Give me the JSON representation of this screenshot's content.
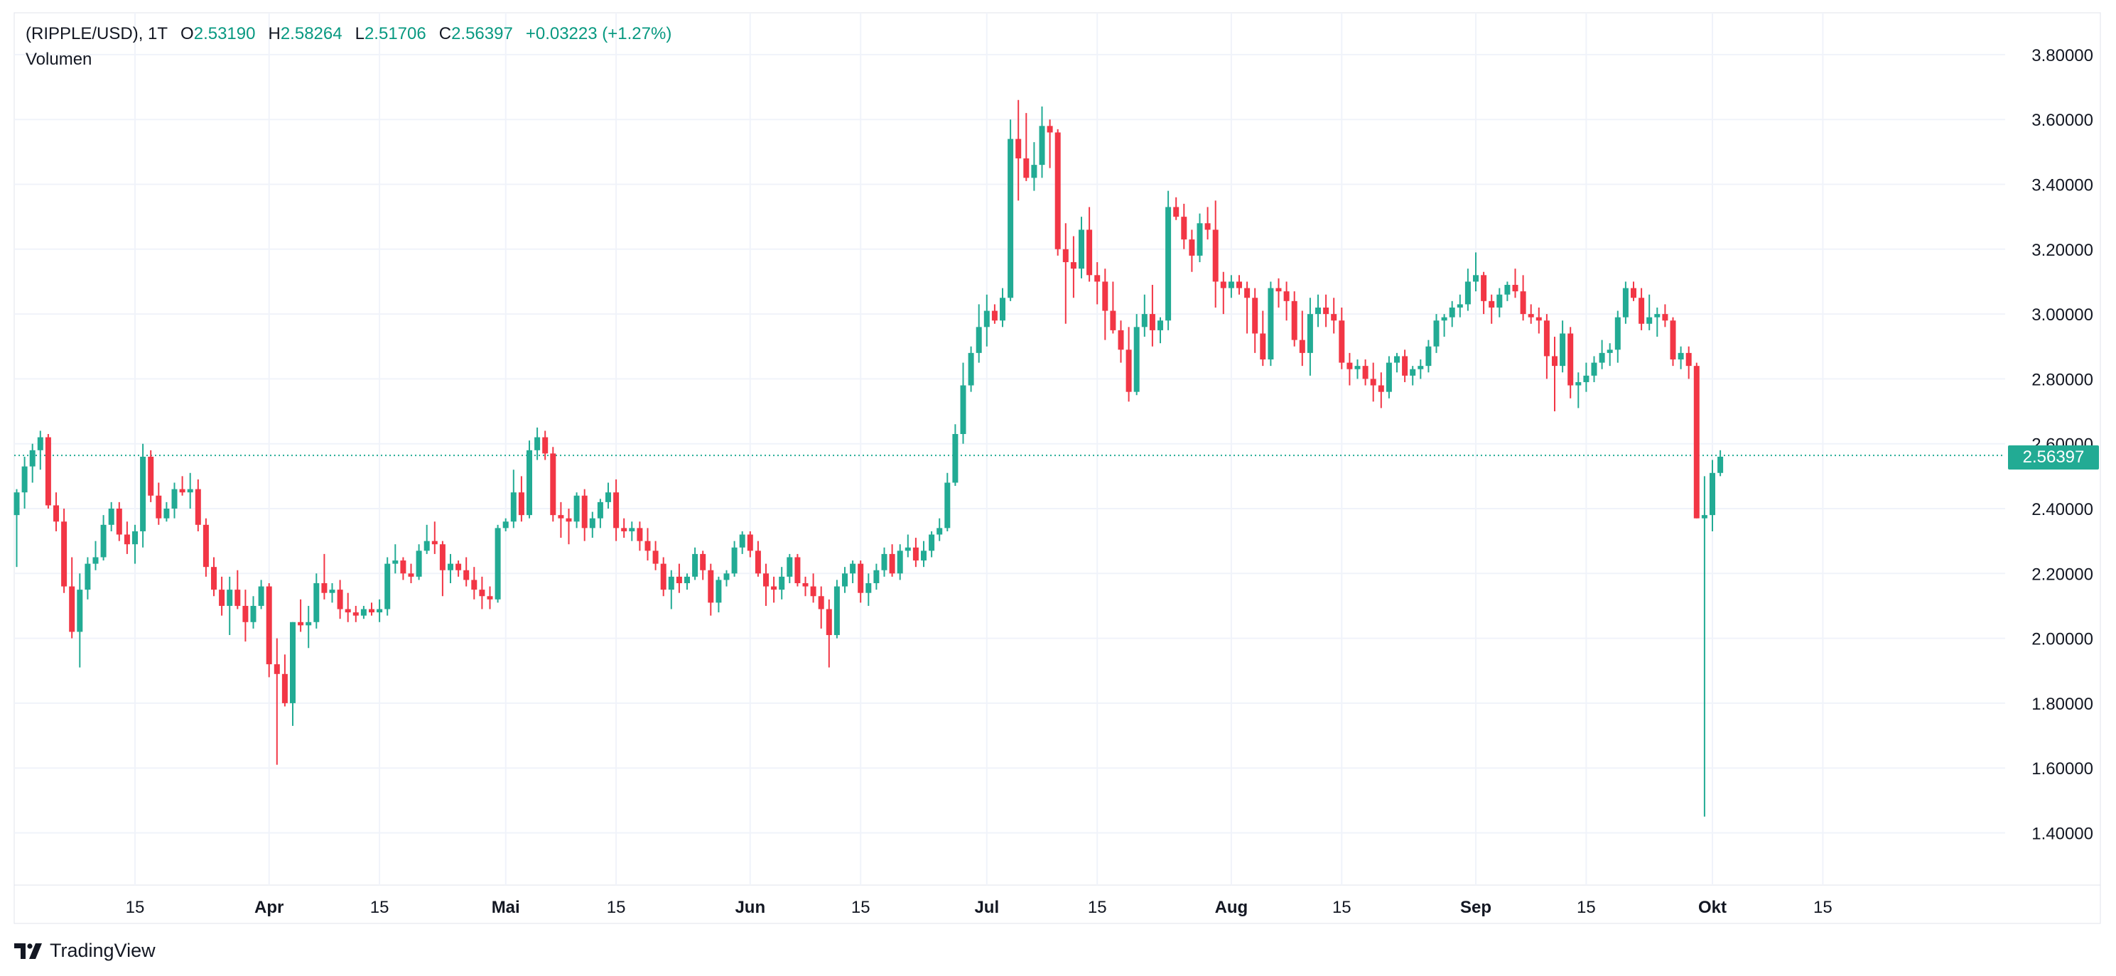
{
  "legend": {
    "symbol": "(RIPPLE/USD), 1T",
    "open_label": "O",
    "open": "2.53190",
    "high_label": "H",
    "high": "2.58264",
    "low_label": "L",
    "low": "2.51706",
    "close_label": "C",
    "close": "2.56397",
    "change": "+0.03223 (+1.27%)"
  },
  "volume_label": "Volumen",
  "last_price": "2.56397",
  "brand": "TradingView",
  "colors": {
    "up": "#22ab94",
    "down": "#f23645",
    "grid": "#f0f3fa",
    "last_line": "#22ab94"
  },
  "chart_data": {
    "type": "candlestick",
    "title": "",
    "xlabel": "",
    "ylabel": "",
    "y_axis": {
      "range": [
        1.3,
        3.9
      ],
      "ticks": [
        "1.40000",
        "1.60000",
        "1.80000",
        "2.00000",
        "2.20000",
        "2.40000",
        "2.60000",
        "2.80000",
        "3.00000",
        "3.20000",
        "3.40000",
        "3.60000",
        "3.80000"
      ],
      "side": "right"
    },
    "x_axis": {
      "ticks": [
        {
          "label": "15",
          "day": 15,
          "major": false
        },
        {
          "label": "Apr",
          "day": 32,
          "major": true
        },
        {
          "label": "15",
          "day": 46,
          "major": false
        },
        {
          "label": "Mai",
          "day": 62,
          "major": true
        },
        {
          "label": "15",
          "day": 76,
          "major": false
        },
        {
          "label": "Jun",
          "day": 93,
          "major": true
        },
        {
          "label": "15",
          "day": 107,
          "major": false
        },
        {
          "label": "Jul",
          "day": 123,
          "major": true
        },
        {
          "label": "15",
          "day": 137,
          "major": false
        },
        {
          "label": "Aug",
          "day": 154,
          "major": true
        },
        {
          "label": "15",
          "day": 168,
          "major": false
        },
        {
          "label": "Sep",
          "day": 185,
          "major": true
        },
        {
          "label": "15",
          "day": 199,
          "major": false
        },
        {
          "label": "Okt",
          "day": 215,
          "major": true
        },
        {
          "label": "15",
          "day": 229,
          "major": false
        }
      ]
    },
    "grid": true,
    "last_price": 2.56397,
    "candles": [
      [
        2.38,
        2.46,
        2.22,
        2.45
      ],
      [
        2.45,
        2.56,
        2.4,
        2.53
      ],
      [
        2.53,
        2.6,
        2.48,
        2.58
      ],
      [
        2.58,
        2.64,
        2.52,
        2.62
      ],
      [
        2.62,
        2.63,
        2.4,
        2.41
      ],
      [
        2.41,
        2.45,
        2.33,
        2.36
      ],
      [
        2.36,
        2.4,
        2.14,
        2.16
      ],
      [
        2.16,
        2.25,
        2.0,
        2.02
      ],
      [
        2.02,
        2.2,
        1.91,
        2.15
      ],
      [
        2.15,
        2.25,
        2.12,
        2.23
      ],
      [
        2.23,
        2.3,
        2.21,
        2.25
      ],
      [
        2.25,
        2.38,
        2.24,
        2.35
      ],
      [
        2.35,
        2.42,
        2.33,
        2.4
      ],
      [
        2.4,
        2.42,
        2.3,
        2.32
      ],
      [
        2.32,
        2.36,
        2.26,
        2.29
      ],
      [
        2.29,
        2.35,
        2.23,
        2.33
      ],
      [
        2.33,
        2.6,
        2.28,
        2.56
      ],
      [
        2.56,
        2.58,
        2.42,
        2.44
      ],
      [
        2.44,
        2.48,
        2.35,
        2.37
      ],
      [
        2.37,
        2.42,
        2.36,
        2.4
      ],
      [
        2.4,
        2.48,
        2.37,
        2.46
      ],
      [
        2.46,
        2.5,
        2.44,
        2.45
      ],
      [
        2.45,
        2.51,
        2.4,
        2.46
      ],
      [
        2.46,
        2.49,
        2.33,
        2.35
      ],
      [
        2.35,
        2.37,
        2.19,
        2.22
      ],
      [
        2.22,
        2.25,
        2.13,
        2.15
      ],
      [
        2.15,
        2.19,
        2.07,
        2.1
      ],
      [
        2.1,
        2.19,
        2.01,
        2.15
      ],
      [
        2.15,
        2.21,
        2.09,
        2.1
      ],
      [
        2.1,
        2.15,
        1.99,
        2.05
      ],
      [
        2.05,
        2.13,
        2.03,
        2.1
      ],
      [
        2.1,
        2.18,
        2.09,
        2.16
      ],
      [
        2.16,
        2.17,
        1.88,
        1.92
      ],
      [
        1.92,
        2.0,
        1.61,
        1.89
      ],
      [
        1.89,
        1.95,
        1.79,
        1.8
      ],
      [
        1.8,
        2.05,
        1.73,
        2.05
      ],
      [
        2.05,
        2.12,
        2.02,
        2.04
      ],
      [
        2.04,
        2.1,
        1.97,
        2.05
      ],
      [
        2.05,
        2.2,
        2.03,
        2.17
      ],
      [
        2.17,
        2.26,
        2.12,
        2.14
      ],
      [
        2.14,
        2.17,
        2.11,
        2.15
      ],
      [
        2.15,
        2.18,
        2.06,
        2.09
      ],
      [
        2.09,
        2.14,
        2.05,
        2.08
      ],
      [
        2.08,
        2.1,
        2.05,
        2.07
      ],
      [
        2.07,
        2.1,
        2.06,
        2.09
      ],
      [
        2.09,
        2.11,
        2.07,
        2.08
      ],
      [
        2.08,
        2.12,
        2.05,
        2.09
      ],
      [
        2.09,
        2.25,
        2.07,
        2.23
      ],
      [
        2.23,
        2.29,
        2.2,
        2.24
      ],
      [
        2.24,
        2.25,
        2.18,
        2.2
      ],
      [
        2.2,
        2.23,
        2.17,
        2.19
      ],
      [
        2.19,
        2.29,
        2.18,
        2.27
      ],
      [
        2.27,
        2.35,
        2.26,
        2.3
      ],
      [
        2.3,
        2.36,
        2.26,
        2.29
      ],
      [
        2.29,
        2.3,
        2.13,
        2.21
      ],
      [
        2.21,
        2.26,
        2.17,
        2.23
      ],
      [
        2.23,
        2.24,
        2.19,
        2.21
      ],
      [
        2.21,
        2.25,
        2.16,
        2.18
      ],
      [
        2.18,
        2.22,
        2.12,
        2.15
      ],
      [
        2.15,
        2.19,
        2.09,
        2.13
      ],
      [
        2.13,
        2.16,
        2.09,
        2.12
      ],
      [
        2.12,
        2.35,
        2.11,
        2.34
      ],
      [
        2.34,
        2.37,
        2.33,
        2.36
      ],
      [
        2.36,
        2.52,
        2.34,
        2.45
      ],
      [
        2.45,
        2.5,
        2.36,
        2.38
      ],
      [
        2.38,
        2.61,
        2.37,
        2.58
      ],
      [
        2.58,
        2.65,
        2.55,
        2.62
      ],
      [
        2.62,
        2.64,
        2.55,
        2.57
      ],
      [
        2.57,
        2.59,
        2.36,
        2.38
      ],
      [
        2.38,
        2.42,
        2.31,
        2.37
      ],
      [
        2.37,
        2.4,
        2.29,
        2.36
      ],
      [
        2.36,
        2.45,
        2.34,
        2.44
      ],
      [
        2.44,
        2.46,
        2.3,
        2.34
      ],
      [
        2.34,
        2.39,
        2.31,
        2.37
      ],
      [
        2.37,
        2.43,
        2.34,
        2.42
      ],
      [
        2.42,
        2.48,
        2.4,
        2.45
      ],
      [
        2.45,
        2.49,
        2.3,
        2.34
      ],
      [
        2.34,
        2.37,
        2.31,
        2.33
      ],
      [
        2.33,
        2.36,
        2.3,
        2.34
      ],
      [
        2.34,
        2.36,
        2.27,
        2.3
      ],
      [
        2.3,
        2.34,
        2.24,
        2.27
      ],
      [
        2.27,
        2.3,
        2.21,
        2.23
      ],
      [
        2.23,
        2.25,
        2.13,
        2.15
      ],
      [
        2.15,
        2.21,
        2.09,
        2.19
      ],
      [
        2.19,
        2.23,
        2.14,
        2.17
      ],
      [
        2.17,
        2.2,
        2.15,
        2.19
      ],
      [
        2.19,
        2.28,
        2.18,
        2.26
      ],
      [
        2.26,
        2.27,
        2.18,
        2.21
      ],
      [
        2.21,
        2.23,
        2.07,
        2.11
      ],
      [
        2.11,
        2.19,
        2.08,
        2.18
      ],
      [
        2.18,
        2.21,
        2.16,
        2.2
      ],
      [
        2.2,
        2.3,
        2.19,
        2.28
      ],
      [
        2.28,
        2.33,
        2.26,
        2.32
      ],
      [
        2.32,
        2.33,
        2.25,
        2.27
      ],
      [
        2.27,
        2.3,
        2.19,
        2.2
      ],
      [
        2.2,
        2.23,
        2.1,
        2.16
      ],
      [
        2.16,
        2.19,
        2.11,
        2.15
      ],
      [
        2.15,
        2.22,
        2.12,
        2.19
      ],
      [
        2.19,
        2.26,
        2.17,
        2.25
      ],
      [
        2.25,
        2.26,
        2.16,
        2.17
      ],
      [
        2.17,
        2.19,
        2.13,
        2.16
      ],
      [
        2.16,
        2.2,
        2.11,
        2.13
      ],
      [
        2.13,
        2.16,
        2.03,
        2.09
      ],
      [
        2.09,
        2.12,
        1.91,
        2.01
      ],
      [
        2.01,
        2.18,
        2.0,
        2.16
      ],
      [
        2.16,
        2.22,
        2.14,
        2.2
      ],
      [
        2.2,
        2.24,
        2.17,
        2.23
      ],
      [
        2.23,
        2.24,
        2.11,
        2.14
      ],
      [
        2.14,
        2.2,
        2.1,
        2.17
      ],
      [
        2.17,
        2.23,
        2.15,
        2.21
      ],
      [
        2.21,
        2.28,
        2.19,
        2.26
      ],
      [
        2.26,
        2.29,
        2.19,
        2.2
      ],
      [
        2.2,
        2.29,
        2.18,
        2.27
      ],
      [
        2.27,
        2.32,
        2.25,
        2.28
      ],
      [
        2.28,
        2.31,
        2.22,
        2.24
      ],
      [
        2.24,
        2.3,
        2.22,
        2.27
      ],
      [
        2.27,
        2.33,
        2.25,
        2.32
      ],
      [
        2.32,
        2.37,
        2.3,
        2.34
      ],
      [
        2.34,
        2.51,
        2.33,
        2.48
      ],
      [
        2.48,
        2.66,
        2.47,
        2.63
      ],
      [
        2.63,
        2.85,
        2.6,
        2.78
      ],
      [
        2.78,
        2.9,
        2.76,
        2.88
      ],
      [
        2.88,
        3.03,
        2.85,
        2.96
      ],
      [
        2.96,
        3.06,
        2.9,
        3.01
      ],
      [
        3.01,
        3.03,
        2.97,
        2.98
      ],
      [
        2.98,
        3.08,
        2.96,
        3.05
      ],
      [
        3.05,
        3.6,
        3.04,
        3.54
      ],
      [
        3.54,
        3.66,
        3.35,
        3.48
      ],
      [
        3.48,
        3.62,
        3.41,
        3.42
      ],
      [
        3.42,
        3.53,
        3.38,
        3.46
      ],
      [
        3.46,
        3.64,
        3.42,
        3.58
      ],
      [
        3.58,
        3.6,
        3.45,
        3.56
      ],
      [
        3.56,
        3.57,
        3.18,
        3.2
      ],
      [
        3.2,
        3.28,
        2.97,
        3.16
      ],
      [
        3.16,
        3.24,
        3.05,
        3.14
      ],
      [
        3.14,
        3.3,
        3.11,
        3.26
      ],
      [
        3.26,
        3.33,
        3.1,
        3.12
      ],
      [
        3.12,
        3.16,
        3.03,
        3.1
      ],
      [
        3.1,
        3.14,
        2.92,
        3.01
      ],
      [
        3.01,
        3.1,
        2.94,
        2.95
      ],
      [
        2.95,
        2.98,
        2.85,
        2.89
      ],
      [
        2.89,
        2.96,
        2.73,
        2.76
      ],
      [
        2.76,
        3.0,
        2.75,
        2.96
      ],
      [
        2.96,
        3.06,
        2.93,
        3.0
      ],
      [
        3.0,
        3.09,
        2.9,
        2.95
      ],
      [
        2.95,
        2.99,
        2.91,
        2.98
      ],
      [
        2.98,
        3.38,
        2.95,
        3.33
      ],
      [
        3.33,
        3.36,
        3.29,
        3.3
      ],
      [
        3.3,
        3.34,
        3.2,
        3.23
      ],
      [
        3.23,
        3.26,
        3.13,
        3.18
      ],
      [
        3.18,
        3.31,
        3.16,
        3.28
      ],
      [
        3.28,
        3.33,
        3.23,
        3.26
      ],
      [
        3.26,
        3.35,
        3.02,
        3.1
      ],
      [
        3.1,
        3.13,
        3.0,
        3.08
      ],
      [
        3.08,
        3.12,
        3.05,
        3.1
      ],
      [
        3.1,
        3.12,
        3.06,
        3.08
      ],
      [
        3.08,
        3.1,
        2.94,
        3.05
      ],
      [
        3.05,
        3.08,
        2.88,
        2.94
      ],
      [
        2.94,
        3.01,
        2.84,
        2.86
      ],
      [
        2.86,
        3.1,
        2.84,
        3.08
      ],
      [
        3.08,
        3.11,
        3.02,
        3.07
      ],
      [
        3.07,
        3.1,
        2.98,
        3.04
      ],
      [
        3.04,
        3.07,
        2.9,
        2.92
      ],
      [
        2.92,
        3.01,
        2.84,
        2.88
      ],
      [
        2.88,
        3.05,
        2.81,
        3.0
      ],
      [
        3.0,
        3.06,
        2.96,
        3.02
      ],
      [
        3.02,
        3.06,
        2.96,
        3.0
      ],
      [
        3.0,
        3.05,
        2.94,
        2.98
      ],
      [
        2.98,
        3.02,
        2.83,
        2.85
      ],
      [
        2.85,
        2.88,
        2.78,
        2.83
      ],
      [
        2.83,
        2.86,
        2.8,
        2.84
      ],
      [
        2.84,
        2.86,
        2.78,
        2.8
      ],
      [
        2.8,
        2.85,
        2.73,
        2.78
      ],
      [
        2.78,
        2.82,
        2.71,
        2.76
      ],
      [
        2.76,
        2.87,
        2.74,
        2.85
      ],
      [
        2.85,
        2.88,
        2.82,
        2.87
      ],
      [
        2.87,
        2.89,
        2.79,
        2.81
      ],
      [
        2.81,
        2.84,
        2.78,
        2.83
      ],
      [
        2.83,
        2.86,
        2.8,
        2.84
      ],
      [
        2.84,
        2.92,
        2.82,
        2.9
      ],
      [
        2.9,
        3.0,
        2.88,
        2.98
      ],
      [
        2.98,
        3.0,
        2.93,
        2.99
      ],
      [
        2.99,
        3.04,
        2.96,
        3.02
      ],
      [
        3.02,
        3.06,
        2.99,
        3.03
      ],
      [
        3.03,
        3.14,
        3.01,
        3.1
      ],
      [
        3.1,
        3.19,
        3.07,
        3.12
      ],
      [
        3.12,
        3.13,
        3.0,
        3.04
      ],
      [
        3.04,
        3.06,
        2.97,
        3.02
      ],
      [
        3.02,
        3.08,
        2.99,
        3.06
      ],
      [
        3.06,
        3.1,
        3.04,
        3.09
      ],
      [
        3.09,
        3.14,
        3.05,
        3.07
      ],
      [
        3.07,
        3.12,
        2.98,
        3.0
      ],
      [
        3.0,
        3.03,
        2.97,
        2.99
      ],
      [
        2.99,
        3.02,
        2.94,
        2.98
      ],
      [
        2.98,
        3.0,
        2.8,
        2.87
      ],
      [
        2.87,
        2.93,
        2.7,
        2.84
      ],
      [
        2.84,
        2.98,
        2.82,
        2.94
      ],
      [
        2.94,
        2.96,
        2.74,
        2.78
      ],
      [
        2.78,
        2.82,
        2.71,
        2.79
      ],
      [
        2.79,
        2.85,
        2.76,
        2.81
      ],
      [
        2.81,
        2.87,
        2.79,
        2.85
      ],
      [
        2.85,
        2.92,
        2.83,
        2.88
      ],
      [
        2.88,
        2.91,
        2.84,
        2.89
      ],
      [
        2.89,
        3.01,
        2.85,
        2.99
      ],
      [
        2.99,
        3.1,
        2.97,
        3.08
      ],
      [
        3.08,
        3.1,
        3.04,
        3.05
      ],
      [
        3.05,
        3.08,
        2.95,
        2.97
      ],
      [
        2.97,
        3.06,
        2.95,
        2.99
      ],
      [
        2.99,
        3.02,
        2.93,
        3.0
      ],
      [
        3.0,
        3.03,
        2.96,
        2.98
      ],
      [
        2.98,
        2.99,
        2.84,
        2.86
      ],
      [
        2.86,
        2.9,
        2.83,
        2.88
      ],
      [
        2.88,
        2.9,
        2.8,
        2.84
      ],
      [
        2.84,
        2.85,
        2.37,
        2.37
      ],
      [
        2.37,
        2.5,
        1.45,
        2.38
      ],
      [
        2.38,
        2.55,
        2.33,
        2.51
      ],
      [
        2.51,
        2.58,
        2.5,
        2.56
      ]
    ]
  }
}
